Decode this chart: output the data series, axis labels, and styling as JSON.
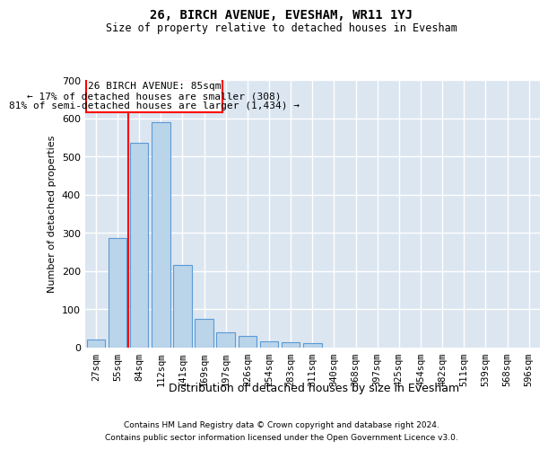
{
  "title1": "26, BIRCH AVENUE, EVESHAM, WR11 1YJ",
  "title2": "Size of property relative to detached houses in Evesham",
  "xlabel": "Distribution of detached houses by size in Evesham",
  "ylabel": "Number of detached properties",
  "footnote1": "Contains HM Land Registry data © Crown copyright and database right 2024.",
  "footnote2": "Contains public sector information licensed under the Open Government Licence v3.0.",
  "bar_labels": [
    "27sqm",
    "55sqm",
    "84sqm",
    "112sqm",
    "141sqm",
    "169sqm",
    "197sqm",
    "226sqm",
    "254sqm",
    "283sqm",
    "311sqm",
    "340sqm",
    "368sqm",
    "397sqm",
    "425sqm",
    "454sqm",
    "482sqm",
    "511sqm",
    "539sqm",
    "568sqm",
    "596sqm"
  ],
  "bar_values": [
    20,
    285,
    535,
    590,
    215,
    75,
    40,
    30,
    15,
    14,
    10,
    0,
    0,
    0,
    0,
    0,
    0,
    0,
    0,
    0,
    0
  ],
  "bar_color": "#bad4ea",
  "bar_edge_color": "#5b9bd5",
  "bg_color": "#dce6f1",
  "grid_color": "#ffffff",
  "vline_xi": 1.5,
  "ann_line1": "26 BIRCH AVENUE: 85sqm",
  "ann_line2": "← 17% of detached houses are smaller (308)",
  "ann_line3": "81% of semi-detached houses are larger (1,434) →",
  "ylim_max": 700,
  "yticks": [
    0,
    100,
    200,
    300,
    400,
    500,
    600,
    700
  ]
}
